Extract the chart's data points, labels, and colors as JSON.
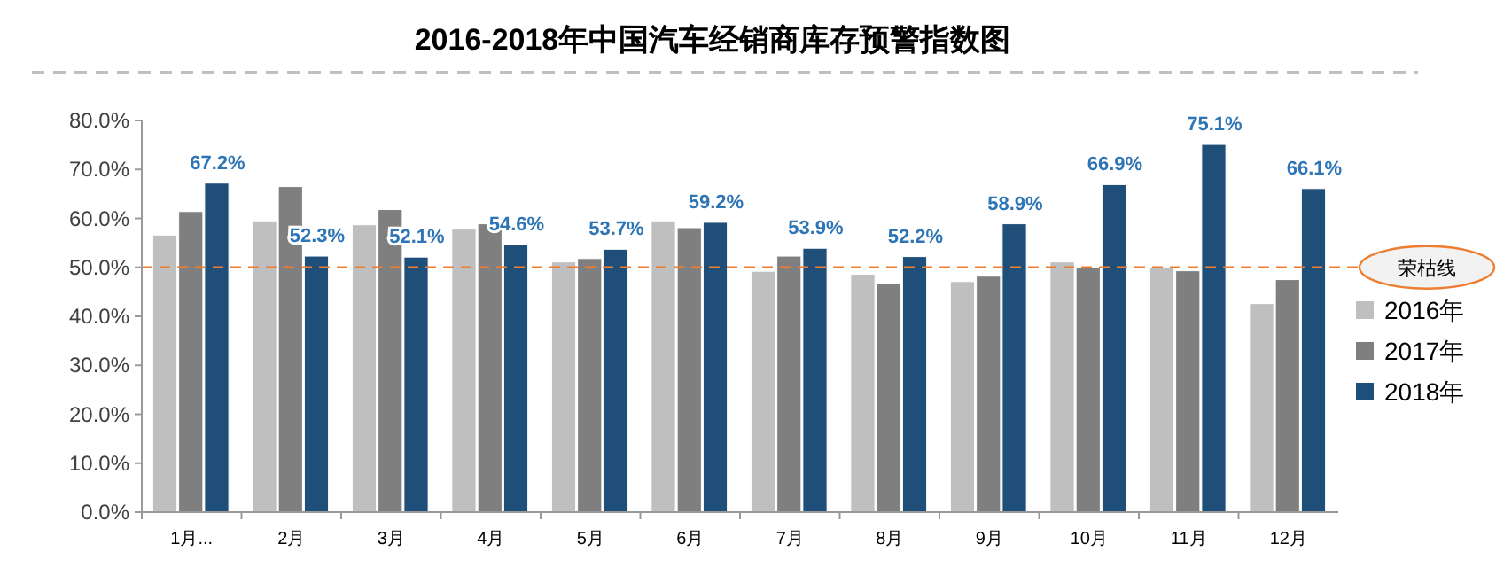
{
  "chart_data": {
    "type": "bar",
    "title": "2016-2018年中国汽车经销商库存预警指数图",
    "categories": [
      "1月...",
      "2月",
      "3月",
      "4月",
      "5月",
      "6月",
      "7月",
      "8月",
      "9月",
      "10月",
      "11月",
      "12月"
    ],
    "series": [
      {
        "name": "2016年",
        "color": "#bfbfbf",
        "values": [
          56.6,
          59.5,
          58.7,
          57.8,
          51.1,
          59.5,
          49.2,
          48.6,
          47.1,
          51.1,
          50.0,
          42.6
        ]
      },
      {
        "name": "2017年",
        "color": "#7f7f7f",
        "values": [
          61.4,
          66.5,
          61.8,
          58.9,
          51.8,
          58.1,
          52.3,
          46.7,
          48.2,
          49.9,
          49.3,
          47.5
        ]
      },
      {
        "name": "2018年",
        "color": "#1f4e79",
        "values": [
          67.2,
          52.3,
          52.1,
          54.6,
          53.7,
          59.2,
          53.9,
          52.2,
          58.9,
          66.9,
          75.1,
          66.1
        ],
        "value_labels": [
          "67.2%",
          "52.3%",
          "52.1%",
          "54.6%",
          "53.7%",
          "59.2%",
          "53.9%",
          "52.2%",
          "58.9%",
          "66.9%",
          "75.1%",
          "66.1%"
        ]
      }
    ],
    "ylim": [
      0,
      80
    ],
    "yticks": [
      {
        "value": 0,
        "label": "0.0%"
      },
      {
        "value": 10,
        "label": "10.0%"
      },
      {
        "value": 20,
        "label": "20.0%"
      },
      {
        "value": 30,
        "label": "30.0%"
      },
      {
        "value": 40,
        "label": "40.0%"
      },
      {
        "value": 50,
        "label": "50.0%"
      },
      {
        "value": 60,
        "label": "60.0%"
      },
      {
        "value": 70,
        "label": "70.0%"
      },
      {
        "value": 80,
        "label": "80.0%"
      }
    ],
    "ref_lines": [
      {
        "axis": "y",
        "value": 50,
        "label": "荣枯线",
        "color": "#ed7d31",
        "line_style": "dashed"
      }
    ],
    "grid": false,
    "legend": "right"
  }
}
